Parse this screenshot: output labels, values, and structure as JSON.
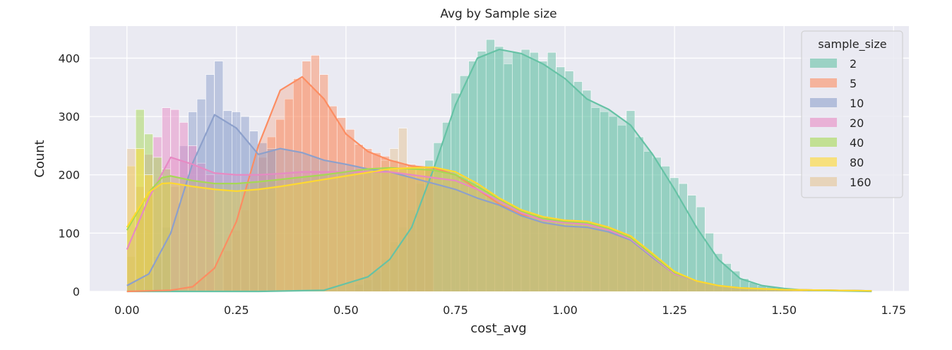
{
  "chart_data": {
    "type": "histogram",
    "title": "Avg by Sample size",
    "xlabel": "cost_avg",
    "ylabel": "Count",
    "xlim": [
      -0.085,
      1.785
    ],
    "ylim": [
      0,
      455
    ],
    "xticks": [
      0.0,
      0.25,
      0.5,
      0.75,
      1.0,
      1.25,
      1.5,
      1.75
    ],
    "xtick_labels": [
      "0.00",
      "0.25",
      "0.50",
      "0.75",
      "1.00",
      "1.25",
      "1.50",
      "1.75"
    ],
    "yticks": [
      0,
      100,
      200,
      300,
      400
    ],
    "ytick_labels": [
      "0",
      "100",
      "200",
      "300",
      "400"
    ],
    "grid": true,
    "legend_title": "sample_size",
    "legend_position": "top-right",
    "bin_start": 0.0,
    "bin_width": 0.0142,
    "series": [
      {
        "name": "2",
        "color": "#66c2a5",
        "kde": [
          [
            0.0,
            0
          ],
          [
            0.3,
            0
          ],
          [
            0.45,
            2
          ],
          [
            0.55,
            25
          ],
          [
            0.6,
            55
          ],
          [
            0.65,
            110
          ],
          [
            0.7,
            210
          ],
          [
            0.75,
            320
          ],
          [
            0.8,
            400
          ],
          [
            0.85,
            415
          ],
          [
            0.9,
            408
          ],
          [
            0.95,
            390
          ],
          [
            1.0,
            365
          ],
          [
            1.05,
            330
          ],
          [
            1.1,
            312
          ],
          [
            1.15,
            285
          ],
          [
            1.2,
            235
          ],
          [
            1.25,
            175
          ],
          [
            1.3,
            110
          ],
          [
            1.35,
            55
          ],
          [
            1.4,
            22
          ],
          [
            1.45,
            10
          ],
          [
            1.5,
            5
          ],
          [
            1.55,
            2
          ],
          [
            1.7,
            0
          ]
        ]
      },
      {
        "name": "5",
        "color": "#fc8d62",
        "kde": [
          [
            0.0,
            0
          ],
          [
            0.05,
            1
          ],
          [
            0.1,
            2
          ],
          [
            0.15,
            8
          ],
          [
            0.2,
            40
          ],
          [
            0.25,
            120
          ],
          [
            0.3,
            250
          ],
          [
            0.35,
            345
          ],
          [
            0.4,
            368
          ],
          [
            0.45,
            330
          ],
          [
            0.5,
            270
          ],
          [
            0.55,
            240
          ],
          [
            0.6,
            225
          ],
          [
            0.65,
            215
          ],
          [
            0.7,
            212
          ],
          [
            0.75,
            200
          ],
          [
            0.8,
            175
          ],
          [
            0.85,
            150
          ],
          [
            0.9,
            132
          ],
          [
            0.95,
            125
          ],
          [
            1.0,
            122
          ],
          [
            1.05,
            120
          ],
          [
            1.1,
            110
          ],
          [
            1.15,
            95
          ],
          [
            1.2,
            60
          ],
          [
            1.25,
            32
          ],
          [
            1.3,
            18
          ],
          [
            1.35,
            10
          ],
          [
            1.4,
            6
          ],
          [
            1.5,
            3
          ],
          [
            1.7,
            1
          ]
        ]
      },
      {
        "name": "10",
        "color": "#8da0cb",
        "kde": [
          [
            0.0,
            10
          ],
          [
            0.05,
            30
          ],
          [
            0.1,
            100
          ],
          [
            0.15,
            220
          ],
          [
            0.2,
            303
          ],
          [
            0.25,
            280
          ],
          [
            0.3,
            235
          ],
          [
            0.35,
            245
          ],
          [
            0.4,
            238
          ],
          [
            0.45,
            225
          ],
          [
            0.5,
            218
          ],
          [
            0.55,
            210
          ],
          [
            0.6,
            205
          ],
          [
            0.65,
            195
          ],
          [
            0.7,
            185
          ],
          [
            0.75,
            175
          ],
          [
            0.8,
            160
          ],
          [
            0.85,
            148
          ],
          [
            0.9,
            130
          ],
          [
            0.95,
            118
          ],
          [
            1.0,
            112
          ],
          [
            1.05,
            110
          ],
          [
            1.1,
            102
          ],
          [
            1.15,
            88
          ],
          [
            1.2,
            58
          ],
          [
            1.25,
            30
          ],
          [
            1.3,
            18
          ],
          [
            1.35,
            10
          ],
          [
            1.4,
            6
          ],
          [
            1.5,
            3
          ],
          [
            1.7,
            1
          ]
        ]
      },
      {
        "name": "20",
        "color": "#e78ac3",
        "kde": [
          [
            0.0,
            72
          ],
          [
            0.05,
            160
          ],
          [
            0.1,
            230
          ],
          [
            0.15,
            218
          ],
          [
            0.2,
            203
          ],
          [
            0.25,
            200
          ],
          [
            0.3,
            200
          ],
          [
            0.35,
            202
          ],
          [
            0.4,
            205
          ],
          [
            0.45,
            205
          ],
          [
            0.5,
            205
          ],
          [
            0.55,
            205
          ],
          [
            0.6,
            205
          ],
          [
            0.65,
            200
          ],
          [
            0.7,
            195
          ],
          [
            0.75,
            190
          ],
          [
            0.8,
            175
          ],
          [
            0.85,
            155
          ],
          [
            0.9,
            135
          ],
          [
            0.95,
            122
          ],
          [
            1.0,
            118
          ],
          [
            1.05,
            115
          ],
          [
            1.1,
            105
          ],
          [
            1.15,
            90
          ],
          [
            1.2,
            60
          ],
          [
            1.25,
            30
          ],
          [
            1.3,
            18
          ],
          [
            1.35,
            10
          ],
          [
            1.4,
            6
          ],
          [
            1.5,
            3
          ],
          [
            1.7,
            1
          ]
        ]
      },
      {
        "name": "40",
        "color": "#a6d854",
        "kde": [
          [
            0.0,
            105
          ],
          [
            0.05,
            170
          ],
          [
            0.08,
            195
          ],
          [
            0.1,
            198
          ],
          [
            0.15,
            190
          ],
          [
            0.2,
            185
          ],
          [
            0.25,
            185
          ],
          [
            0.3,
            188
          ],
          [
            0.35,
            192
          ],
          [
            0.4,
            196
          ],
          [
            0.45,
            200
          ],
          [
            0.5,
            205
          ],
          [
            0.55,
            210
          ],
          [
            0.6,
            212
          ],
          [
            0.65,
            210
          ],
          [
            0.7,
            208
          ],
          [
            0.75,
            200
          ],
          [
            0.8,
            180
          ],
          [
            0.85,
            158
          ],
          [
            0.9,
            138
          ],
          [
            0.95,
            125
          ],
          [
            1.0,
            120
          ],
          [
            1.05,
            118
          ],
          [
            1.1,
            108
          ],
          [
            1.15,
            92
          ],
          [
            1.2,
            62
          ],
          [
            1.25,
            32
          ],
          [
            1.3,
            18
          ],
          [
            1.35,
            10
          ],
          [
            1.4,
            6
          ],
          [
            1.5,
            3
          ],
          [
            1.7,
            1
          ]
        ]
      },
      {
        "name": "80",
        "color": "#ffd92f",
        "kde": [
          [
            0.0,
            110
          ],
          [
            0.05,
            170
          ],
          [
            0.08,
            185
          ],
          [
            0.1,
            186
          ],
          [
            0.15,
            180
          ],
          [
            0.2,
            175
          ],
          [
            0.25,
            172
          ],
          [
            0.3,
            175
          ],
          [
            0.35,
            180
          ],
          [
            0.4,
            186
          ],
          [
            0.45,
            192
          ],
          [
            0.5,
            198
          ],
          [
            0.55,
            204
          ],
          [
            0.6,
            210
          ],
          [
            0.65,
            212
          ],
          [
            0.7,
            213
          ],
          [
            0.75,
            205
          ],
          [
            0.8,
            185
          ],
          [
            0.85,
            160
          ],
          [
            0.9,
            140
          ],
          [
            0.95,
            128
          ],
          [
            1.0,
            122
          ],
          [
            1.05,
            120
          ],
          [
            1.1,
            110
          ],
          [
            1.15,
            95
          ],
          [
            1.2,
            65
          ],
          [
            1.25,
            34
          ],
          [
            1.3,
            18
          ],
          [
            1.35,
            10
          ],
          [
            1.4,
            6
          ],
          [
            1.5,
            3
          ],
          [
            1.7,
            1
          ]
        ]
      }
    ],
    "bars": {
      "2": [
        [
          0.52,
          12
        ],
        [
          0.54,
          20
        ],
        [
          0.56,
          35
        ],
        [
          0.58,
          55
        ],
        [
          0.6,
          85
        ],
        [
          0.62,
          110
        ],
        [
          0.64,
          140
        ],
        [
          0.66,
          185
        ],
        [
          0.68,
          225
        ],
        [
          0.7,
          255
        ],
        [
          0.72,
          290
        ],
        [
          0.74,
          340
        ],
        [
          0.76,
          370
        ],
        [
          0.78,
          395
        ],
        [
          0.8,
          412
        ],
        [
          0.82,
          432
        ],
        [
          0.84,
          420
        ],
        [
          0.86,
          390
        ],
        [
          0.88,
          410
        ],
        [
          0.9,
          415
        ],
        [
          0.92,
          410
        ],
        [
          0.94,
          395
        ],
        [
          0.96,
          410
        ],
        [
          0.98,
          385
        ],
        [
          1.0,
          378
        ],
        [
          1.02,
          360
        ],
        [
          1.04,
          345
        ],
        [
          1.06,
          315
        ],
        [
          1.08,
          308
        ],
        [
          1.1,
          300
        ],
        [
          1.12,
          285
        ],
        [
          1.14,
          310
        ],
        [
          1.16,
          265
        ],
        [
          1.18,
          240
        ],
        [
          1.2,
          230
        ],
        [
          1.22,
          215
        ],
        [
          1.24,
          195
        ],
        [
          1.26,
          185
        ],
        [
          1.28,
          165
        ],
        [
          1.3,
          145
        ],
        [
          1.32,
          100
        ],
        [
          1.34,
          65
        ],
        [
          1.36,
          48
        ],
        [
          1.38,
          35
        ],
        [
          1.4,
          22
        ],
        [
          1.42,
          15
        ],
        [
          1.44,
          10
        ],
        [
          1.46,
          8
        ],
        [
          1.48,
          5
        ],
        [
          1.5,
          3
        ]
      ],
      "5": [
        [
          0.22,
          70
        ],
        [
          0.24,
          105
        ],
        [
          0.26,
          140
        ],
        [
          0.28,
          175
        ],
        [
          0.3,
          230
        ],
        [
          0.32,
          265
        ],
        [
          0.34,
          295
        ],
        [
          0.36,
          330
        ],
        [
          0.38,
          365
        ],
        [
          0.4,
          395
        ],
        [
          0.42,
          405
        ],
        [
          0.44,
          372
        ],
        [
          0.46,
          318
        ],
        [
          0.48,
          298
        ],
        [
          0.5,
          278
        ],
        [
          0.52,
          252
        ],
        [
          0.54,
          245
        ],
        [
          0.56,
          238
        ],
        [
          0.58,
          232
        ],
        [
          0.6,
          225
        ],
        [
          0.62,
          220
        ],
        [
          0.64,
          218
        ],
        [
          0.66,
          214
        ],
        [
          0.68,
          212
        ]
      ],
      "10": [
        [
          0.04,
          30
        ],
        [
          0.06,
          60
        ],
        [
          0.08,
          110
        ],
        [
          0.1,
          180
        ],
        [
          0.12,
          250
        ],
        [
          0.14,
          308
        ],
        [
          0.16,
          330
        ],
        [
          0.18,
          372
        ],
        [
          0.2,
          395
        ],
        [
          0.22,
          310
        ],
        [
          0.24,
          308
        ],
        [
          0.26,
          300
        ],
        [
          0.28,
          275
        ],
        [
          0.3,
          255
        ],
        [
          0.32,
          245
        ]
      ],
      "20": [
        [
          0.02,
          180
        ],
        [
          0.04,
          235
        ],
        [
          0.06,
          265
        ],
        [
          0.08,
          315
        ],
        [
          0.1,
          312
        ],
        [
          0.12,
          290
        ],
        [
          0.14,
          250
        ],
        [
          0.16,
          220
        ],
        [
          0.18,
          200
        ]
      ],
      "40": [
        [
          0.0,
          60
        ],
        [
          0.02,
          312
        ],
        [
          0.04,
          270
        ],
        [
          0.06,
          230
        ],
        [
          0.08,
          210
        ]
      ],
      "80": [
        [
          0.0,
          215
        ],
        [
          0.02,
          245
        ],
        [
          0.04,
          200
        ]
      ],
      "160": [
        [
          0.0,
          245
        ],
        [
          0.62,
          280
        ],
        [
          0.6,
          245
        ],
        [
          0.58,
          225
        ]
      ]
    },
    "legend_entries": [
      {
        "label": "2",
        "color": "#66c2a5"
      },
      {
        "label": "5",
        "color": "#fc8d62"
      },
      {
        "label": "10",
        "color": "#8da0cb"
      },
      {
        "label": "20",
        "color": "#e78ac3"
      },
      {
        "label": "40",
        "color": "#a6d854"
      },
      {
        "label": "80",
        "color": "#ffd92f"
      },
      {
        "label": "160",
        "color": "#e5c494"
      }
    ]
  },
  "style": {
    "plot_background": "#eaeaf2",
    "grid_color": "#ffffff",
    "text_color": "#262626"
  }
}
